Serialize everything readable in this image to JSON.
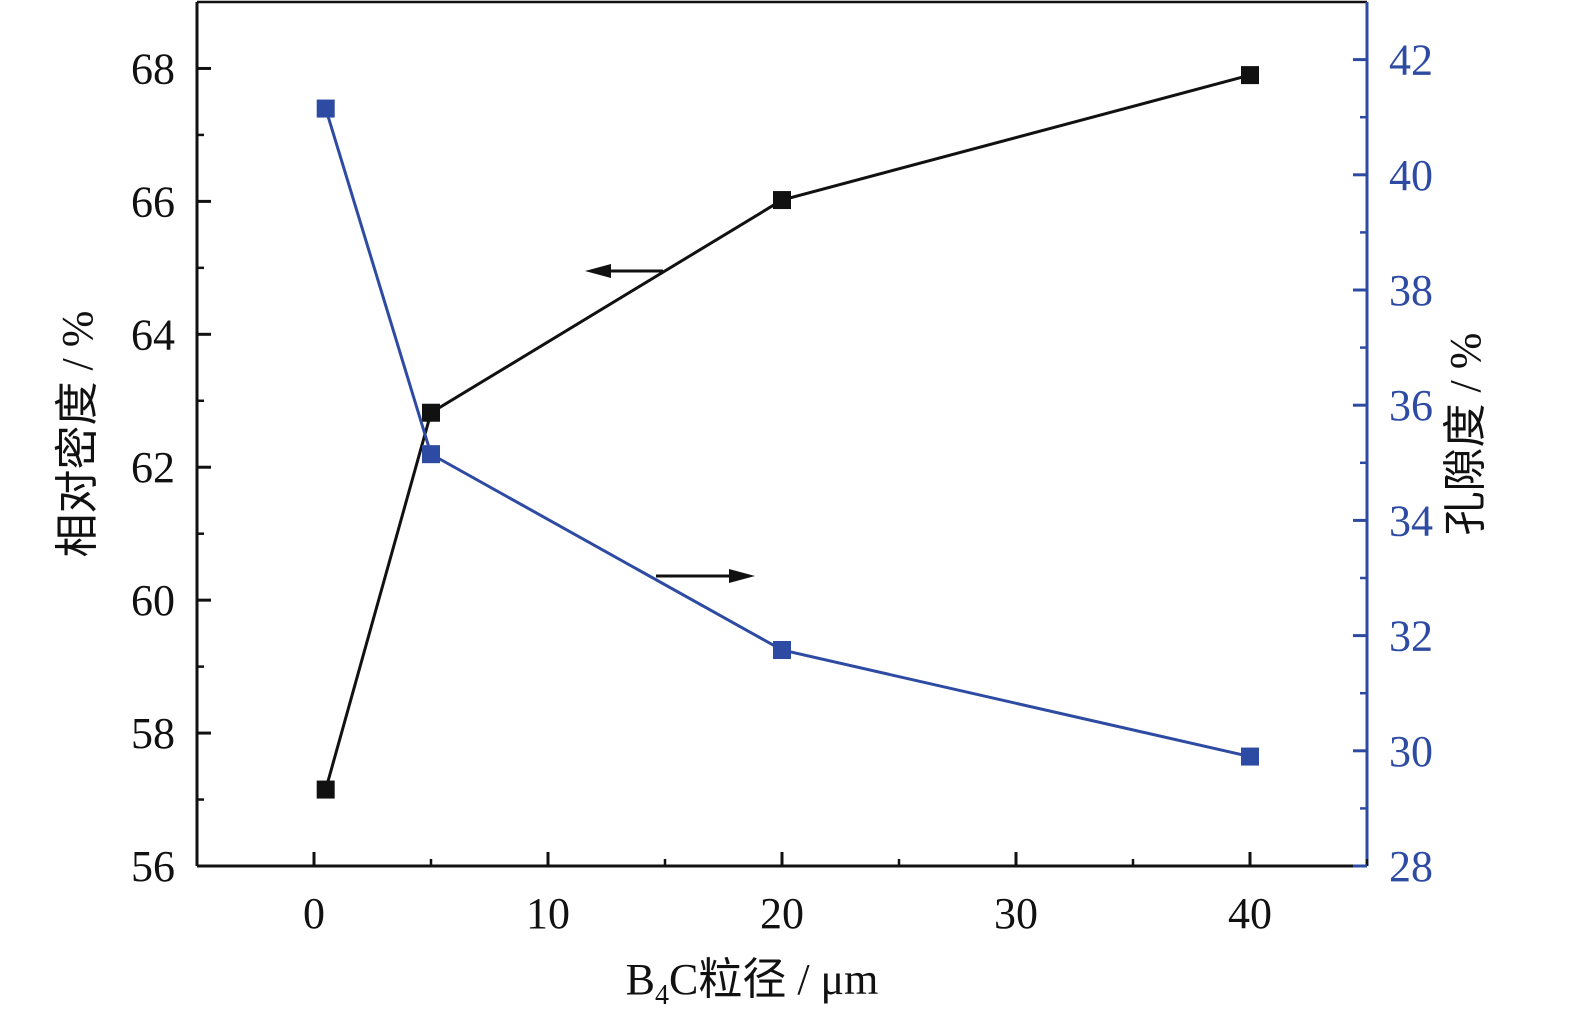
{
  "chart_data": {
    "type": "line",
    "xlabel": {
      "prefix": "B",
      "subscript": "4",
      "suffix": "C粒径 / μm"
    },
    "y1label": "相对密度 / %",
    "y2label": "孔隙度 / %",
    "xlim": [
      -5,
      45
    ],
    "y1lim": [
      56,
      69
    ],
    "y2lim": [
      28,
      43
    ],
    "xticks": [
      0,
      10,
      20,
      30,
      40
    ],
    "y1ticks": [
      56,
      58,
      60,
      62,
      64,
      66,
      68
    ],
    "y2ticks": [
      28,
      30,
      32,
      34,
      36,
      38,
      40,
      42
    ],
    "series": [
      {
        "axis": "left",
        "color": "#111111",
        "x": [
          0.5,
          5,
          20,
          40
        ],
        "y": [
          57.15,
          62.82,
          66.02,
          67.9
        ]
      },
      {
        "axis": "right",
        "color": "#2e4ba3",
        "x": [
          0.5,
          5,
          20,
          40
        ],
        "y": [
          41.15,
          35.15,
          31.75,
          29.9
        ]
      }
    ],
    "annotations": [
      {
        "type": "arrow",
        "direction": "left",
        "refers_to": "left-axis"
      },
      {
        "type": "arrow",
        "direction": "right",
        "refers_to": "right-axis"
      }
    ],
    "colors": {
      "left_axis": "#111111",
      "right_axis": "#2e4ba3"
    },
    "grid": false
  }
}
